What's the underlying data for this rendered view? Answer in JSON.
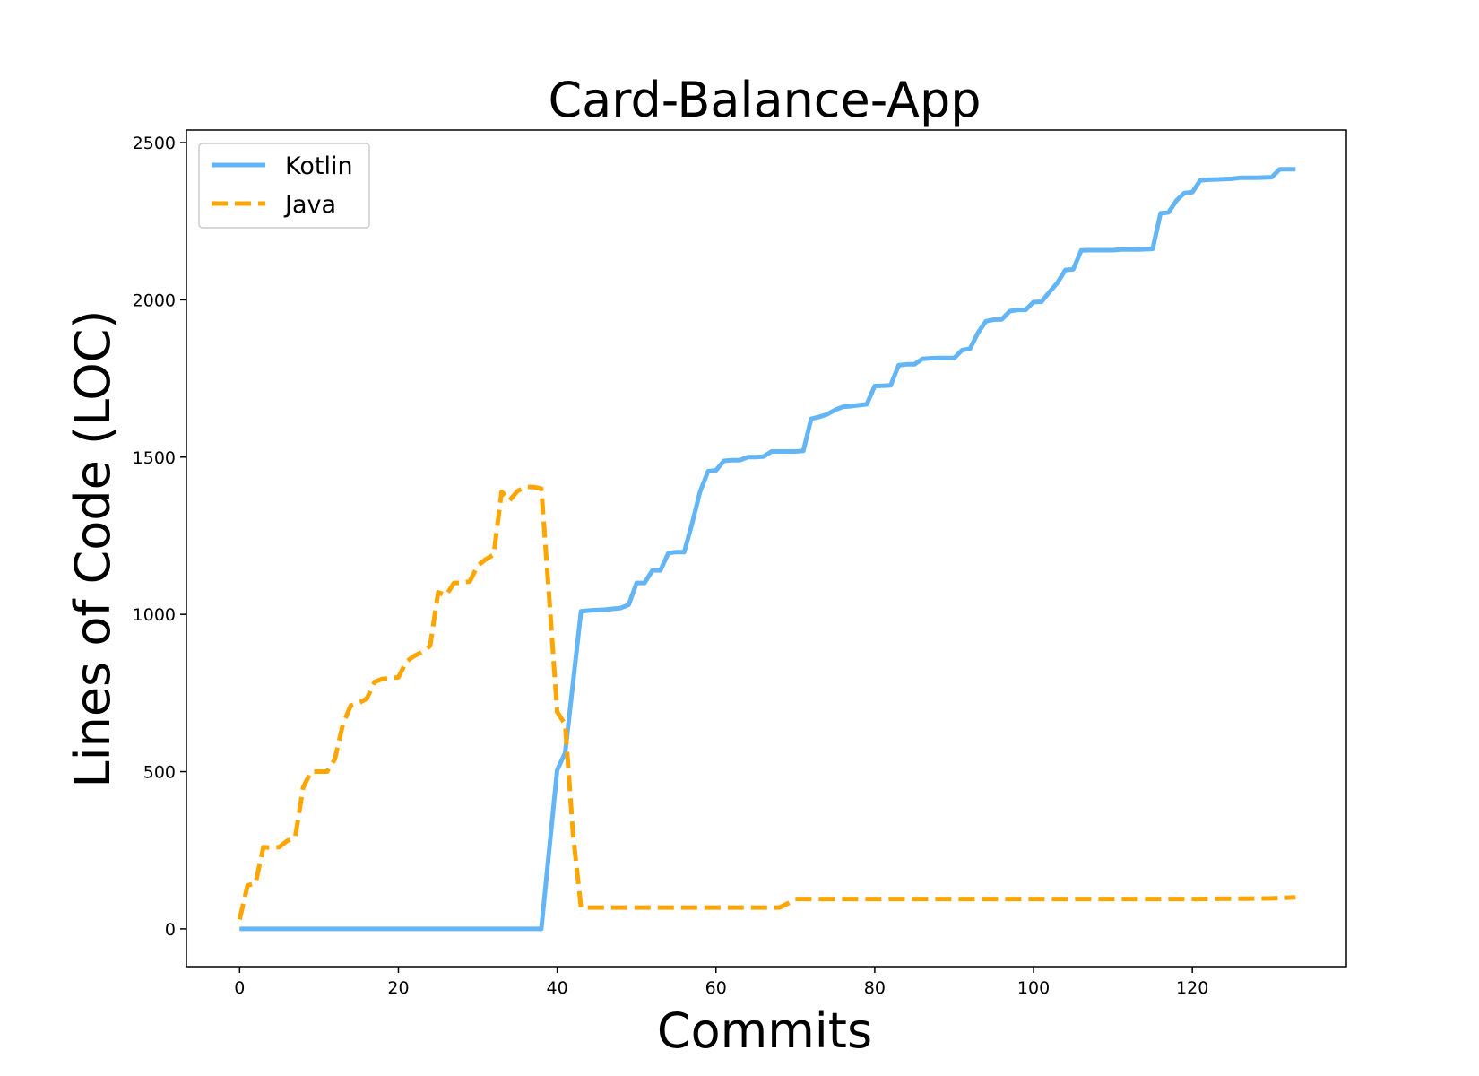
{
  "chart_data": {
    "type": "line",
    "title": "Card-Balance-App",
    "xlabel": "Commits",
    "ylabel": "Lines of Code (LOC)",
    "xlim": [
      -6.7,
      139.4
    ],
    "ylim": [
      -120,
      2540
    ],
    "xticks": [
      0,
      20,
      40,
      60,
      80,
      100,
      120
    ],
    "yticks": [
      0,
      500,
      1000,
      1500,
      2000,
      2500
    ],
    "grid": false,
    "legend_position": "top-left",
    "series": [
      {
        "name": "Kotlin",
        "color": "#64b5f6",
        "style": "solid",
        "points": [
          [
            0,
            0
          ],
          [
            10,
            0
          ],
          [
            20,
            0
          ],
          [
            30,
            0
          ],
          [
            38,
            0
          ],
          [
            40,
            505
          ],
          [
            41,
            560
          ],
          [
            43,
            1010
          ],
          [
            44,
            1012
          ],
          [
            46,
            1015
          ],
          [
            48,
            1020
          ],
          [
            49,
            1030
          ],
          [
            50,
            1100
          ],
          [
            51,
            1100
          ],
          [
            52,
            1140
          ],
          [
            53,
            1140
          ],
          [
            54,
            1195
          ],
          [
            55,
            1198
          ],
          [
            56,
            1198
          ],
          [
            57,
            1290
          ],
          [
            58,
            1390
          ],
          [
            59,
            1455
          ],
          [
            60,
            1458
          ],
          [
            61,
            1488
          ],
          [
            62,
            1490
          ],
          [
            63,
            1490
          ],
          [
            64,
            1500
          ],
          [
            65,
            1500
          ],
          [
            66,
            1502
          ],
          [
            67,
            1518
          ],
          [
            68,
            1518
          ],
          [
            70,
            1518
          ],
          [
            71,
            1520
          ],
          [
            72,
            1622
          ],
          [
            73,
            1628
          ],
          [
            74,
            1636
          ],
          [
            75,
            1650
          ],
          [
            76,
            1660
          ],
          [
            77,
            1662
          ],
          [
            78,
            1665
          ],
          [
            79,
            1668
          ],
          [
            80,
            1726
          ],
          [
            81,
            1727
          ],
          [
            82,
            1728
          ],
          [
            83,
            1792
          ],
          [
            84,
            1795
          ],
          [
            85,
            1795
          ],
          [
            86,
            1812
          ],
          [
            87,
            1814
          ],
          [
            88,
            1815
          ],
          [
            90,
            1815
          ],
          [
            91,
            1840
          ],
          [
            92,
            1845
          ],
          [
            93,
            1895
          ],
          [
            94,
            1932
          ],
          [
            95,
            1937
          ],
          [
            96,
            1938
          ],
          [
            97,
            1964
          ],
          [
            98,
            1968
          ],
          [
            99,
            1968
          ],
          [
            100,
            1993
          ],
          [
            101,
            1994
          ],
          [
            102,
            2025
          ],
          [
            103,
            2054
          ],
          [
            104,
            2095
          ],
          [
            105,
            2097
          ],
          [
            106,
            2157
          ],
          [
            107,
            2158
          ],
          [
            110,
            2158
          ],
          [
            111,
            2160
          ],
          [
            113,
            2160
          ],
          [
            115,
            2162
          ],
          [
            116,
            2275
          ],
          [
            117,
            2278
          ],
          [
            118,
            2316
          ],
          [
            119,
            2340
          ],
          [
            120,
            2342
          ],
          [
            121,
            2380
          ],
          [
            122,
            2382
          ],
          [
            123,
            2383
          ],
          [
            125,
            2385
          ],
          [
            126,
            2388
          ],
          [
            128,
            2388
          ],
          [
            130,
            2390
          ],
          [
            131,
            2415
          ],
          [
            133,
            2415
          ]
        ]
      },
      {
        "name": "Java",
        "color": "#ffa500",
        "style": "dashed",
        "points": [
          [
            0,
            30
          ],
          [
            1,
            138
          ],
          [
            2,
            145
          ],
          [
            3,
            260
          ],
          [
            4,
            258
          ],
          [
            5,
            260
          ],
          [
            6,
            280
          ],
          [
            7,
            290
          ],
          [
            8,
            450
          ],
          [
            9,
            500
          ],
          [
            10,
            500
          ],
          [
            11,
            500
          ],
          [
            12,
            540
          ],
          [
            13,
            650
          ],
          [
            14,
            710
          ],
          [
            15,
            718
          ],
          [
            16,
            732
          ],
          [
            17,
            785
          ],
          [
            18,
            795
          ],
          [
            19,
            797
          ],
          [
            20,
            800
          ],
          [
            21,
            850
          ],
          [
            22,
            868
          ],
          [
            23,
            880
          ],
          [
            24,
            900
          ],
          [
            25,
            1070
          ],
          [
            26,
            1060
          ],
          [
            27,
            1100
          ],
          [
            28,
            1100
          ],
          [
            29,
            1105
          ],
          [
            30,
            1155
          ],
          [
            31,
            1175
          ],
          [
            32,
            1190
          ],
          [
            33,
            1390
          ],
          [
            34,
            1362
          ],
          [
            35,
            1392
          ],
          [
            36,
            1405
          ],
          [
            37,
            1405
          ],
          [
            38,
            1400
          ],
          [
            39,
            1050
          ],
          [
            40,
            690
          ],
          [
            41,
            650
          ],
          [
            42,
            300
          ],
          [
            43,
            68
          ],
          [
            50,
            68
          ],
          [
            60,
            68
          ],
          [
            68,
            68
          ],
          [
            69,
            80
          ],
          [
            70,
            95
          ],
          [
            80,
            95
          ],
          [
            90,
            95
          ],
          [
            100,
            95
          ],
          [
            110,
            95
          ],
          [
            120,
            95
          ],
          [
            130,
            97
          ],
          [
            133,
            100
          ]
        ]
      }
    ]
  }
}
